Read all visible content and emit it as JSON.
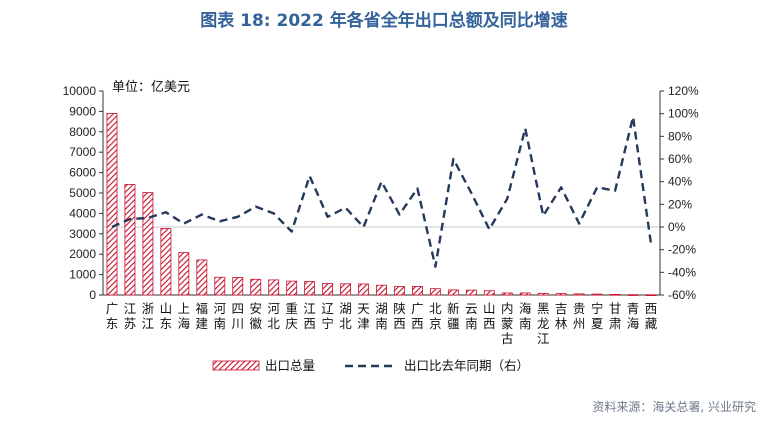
{
  "header": {
    "title": "图表 18: 2022 年各省全年出口总额及同比增速"
  },
  "footer": {
    "source": "资料来源：海关总署, 兴业研究"
  },
  "chart_data": {
    "type": "bar",
    "unit_label": "单位：亿美元",
    "categories": [
      "广东",
      "江苏",
      "浙江",
      "山东",
      "上海",
      "福建",
      "河南",
      "四川",
      "安徽",
      "河北",
      "重庆",
      "江西",
      "辽宁",
      "湖北",
      "天津",
      "湖南",
      "陕西",
      "广西",
      "北京",
      "新疆",
      "云南",
      "山西",
      "内蒙古",
      "海南",
      "黑龙江",
      "吉林",
      "贵州",
      "宁夏",
      "甘肃",
      "青海",
      "西藏"
    ],
    "series": [
      {
        "name": "出口总量",
        "axis": "left",
        "type": "bar",
        "color": "#c8102e",
        "values": [
          8900,
          5420,
          5020,
          3260,
          2080,
          1720,
          870,
          860,
          770,
          740,
          680,
          660,
          570,
          550,
          540,
          480,
          420,
          420,
          310,
          250,
          240,
          210,
          100,
          100,
          80,
          70,
          55,
          45,
          30,
          15,
          10
        ]
      },
      {
        "name": "出口比去年同期（右）",
        "axis": "right",
        "type": "line",
        "color": "#24395c",
        "values": [
          0,
          7,
          8,
          13,
          3,
          11,
          5,
          9,
          18,
          12,
          -4,
          45,
          9,
          17,
          0,
          40,
          11,
          34,
          -35,
          60,
          30,
          -2,
          25,
          87,
          10,
          35,
          3,
          35,
          32,
          97,
          -15
        ]
      }
    ],
    "left_axis": {
      "ylim": [
        0,
        10000
      ],
      "ticks": [
        "0",
        "1000",
        "2000",
        "3000",
        "4000",
        "5000",
        "6000",
        "7000",
        "8000",
        "9000",
        "10000"
      ]
    },
    "right_axis": {
      "ylim": [
        -60,
        120
      ],
      "ticks": [
        "-60%",
        "-40%",
        "-20%",
        "0%",
        "20%",
        "40%",
        "60%",
        "80%",
        "100%",
        "120%"
      ]
    },
    "legend": {
      "position": "bottom"
    }
  }
}
